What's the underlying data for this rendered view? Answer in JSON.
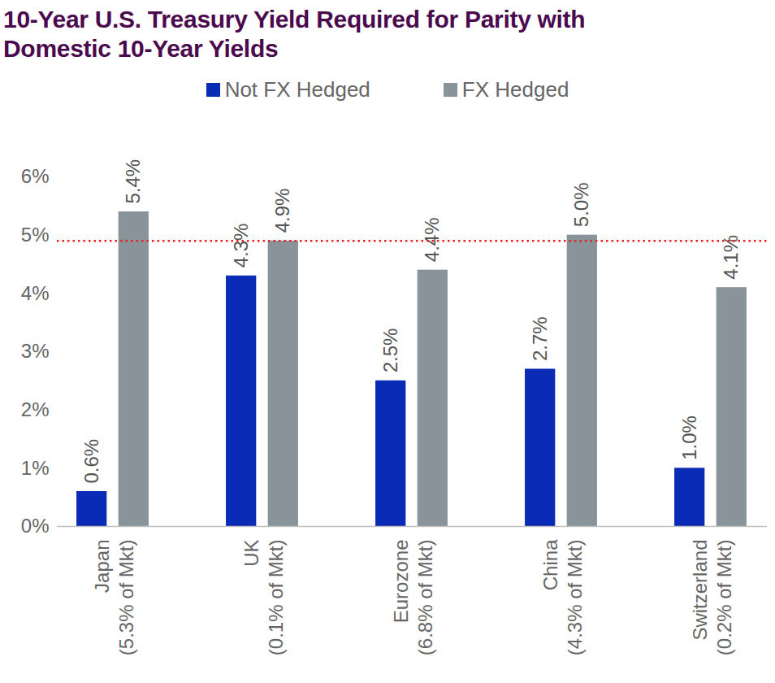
{
  "chart_data": {
    "type": "bar",
    "title": "10-Year U.S. Treasury Yield Required for Parity with Domestic 10-Year Yields",
    "categories": [
      "Japan (5.3% of Mkt)",
      "UK (0.1% of Mkt)",
      "Eurozone (6.8% of Mkt)",
      "China (4.3% of Mkt)",
      "Switzerland (0.2% of Mkt)"
    ],
    "series": [
      {
        "name": "Not FX Hedged",
        "color": "#0a2bb5",
        "values": [
          0.6,
          4.3,
          2.5,
          2.7,
          1.0
        ],
        "value_labels": [
          "0.6%",
          "4.3%",
          "2.5%",
          "2.7%",
          "1.0%"
        ]
      },
      {
        "name": "FX Hedged",
        "color": "#88939a",
        "values": [
          5.4,
          4.9,
          4.4,
          5.0,
          4.1
        ],
        "value_labels": [
          "5.4%",
          "4.9%",
          "4.4%",
          "5.0%",
          "4.1%"
        ]
      }
    ],
    "ylim": [
      0,
      6
    ],
    "yticks": [
      {
        "value": 0,
        "label": "0%"
      },
      {
        "value": 1,
        "label": "1%"
      },
      {
        "value": 2,
        "label": "2%"
      },
      {
        "value": 3,
        "label": "3%"
      },
      {
        "value": 4,
        "label": "4%"
      },
      {
        "value": 5,
        "label": "5%"
      },
      {
        "value": 6,
        "label": "6%"
      }
    ],
    "grid": false,
    "legend": "top",
    "data_labels": true,
    "annotations": [
      {
        "type": "hline",
        "value": 4.9,
        "color": "#e8231f",
        "line_style": "dotted"
      }
    ]
  }
}
